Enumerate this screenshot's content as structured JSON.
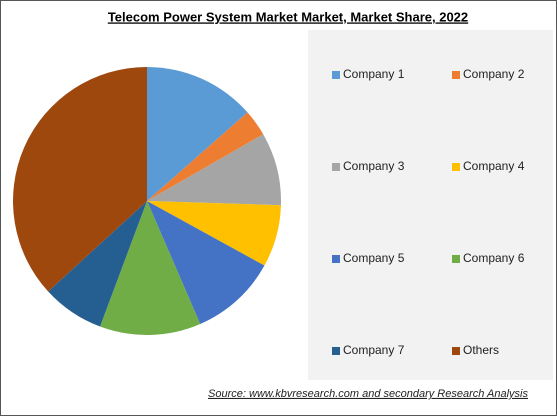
{
  "chart_data": {
    "type": "pie",
    "title": "Telecom Power System Market Market, Market Share, 2022",
    "categories": [
      "Company 1",
      "Company 2",
      "Company 3",
      "Company 4",
      "Company 5",
      "Company 6",
      "Company 7",
      "Others"
    ],
    "values": [
      13.5,
      3.2,
      8.8,
      7.5,
      10.5,
      12.2,
      7.5,
      36.8
    ],
    "colors": [
      "#5b9bd5",
      "#ed7d31",
      "#a5a5a5",
      "#ffc000",
      "#4472c4",
      "#70ad47",
      "#255e91",
      "#9e480e"
    ],
    "legend": "right",
    "source": "Source:  www.kbvresearch.com  and secondary Research  Analysis"
  }
}
